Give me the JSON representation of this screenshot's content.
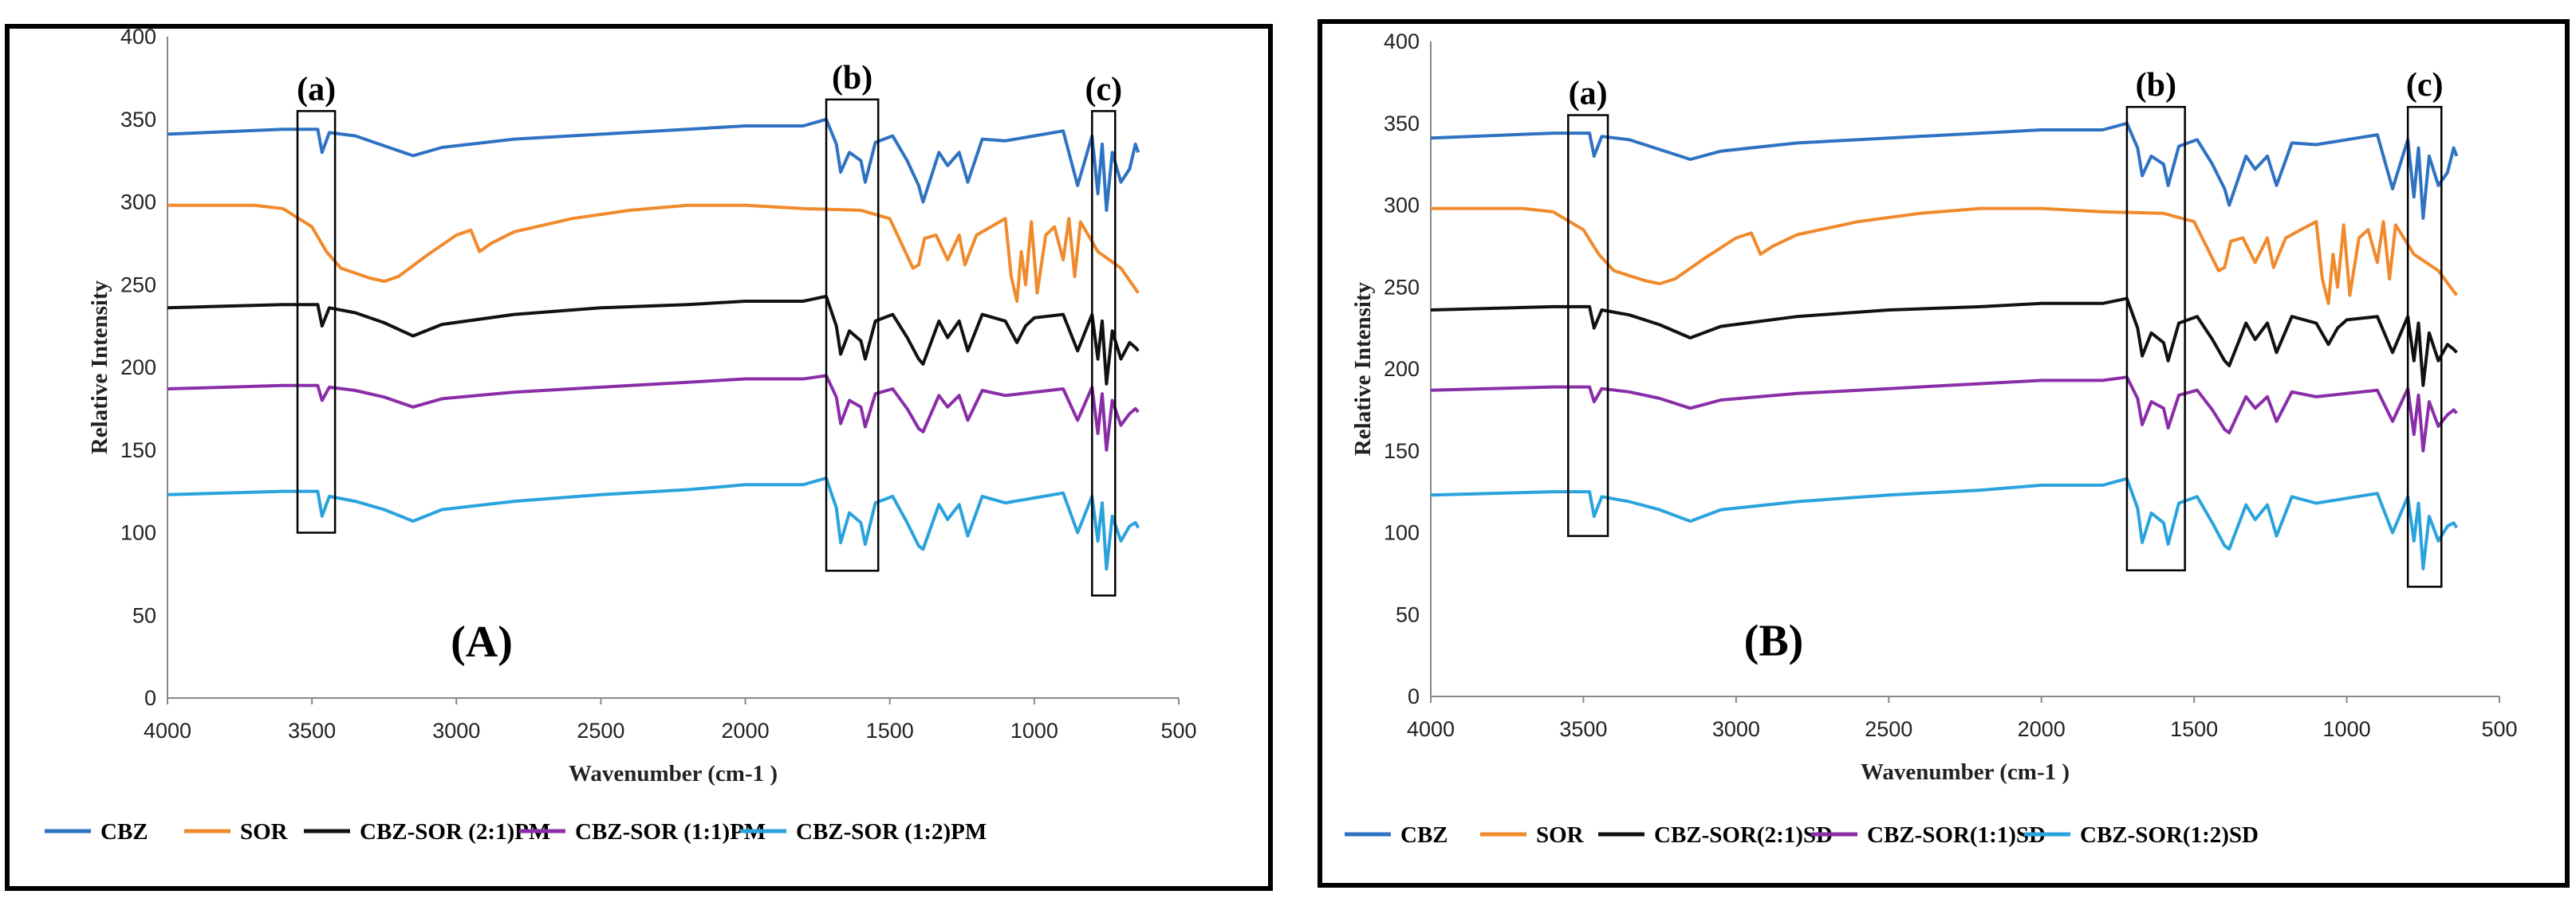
{
  "chart_data": [
    {
      "type": "line",
      "panel_label": "(A)",
      "xlabel": "Wavenumber (cm-1 )",
      "ylabel": "Relative  Intensity",
      "xlim": [
        4000,
        500
      ],
      "ylim": [
        0,
        400
      ],
      "x_ticks": [
        "4000",
        "3500",
        "3000",
        "2500",
        "2000",
        "1500",
        "1000",
        "500"
      ],
      "y_ticks": [
        "0",
        "50",
        "100",
        "150",
        "200",
        "250",
        "300",
        "350",
        "400"
      ],
      "grid": false,
      "legend_position": "bottom",
      "highlight_boxes": [
        {
          "label": "(a)",
          "x_range": [
            3550,
            3420
          ],
          "y_range": [
            100,
            355
          ]
        },
        {
          "label": "(b)",
          "x_range": [
            1720,
            1540
          ],
          "y_range": [
            77,
            362
          ]
        },
        {
          "label": "(c)",
          "x_range": [
            800,
            720
          ],
          "y_range": [
            62,
            355
          ]
        }
      ],
      "series": [
        {
          "name": "CBZ",
          "color": "#2e72c2",
          "x": [
            4000,
            3600,
            3480,
            3465,
            3440,
            3350,
            3250,
            3150,
            3050,
            2800,
            2500,
            2200,
            2000,
            1800,
            1720,
            1685,
            1670,
            1640,
            1600,
            1585,
            1550,
            1490,
            1440,
            1400,
            1385,
            1330,
            1300,
            1260,
            1230,
            1180,
            1100,
            1000,
            900,
            850,
            800,
            780,
            765,
            750,
            730,
            700,
            670,
            650,
            640
          ],
          "values": [
            341,
            344,
            344,
            330,
            342,
            340,
            334,
            328,
            333,
            338,
            341,
            344,
            346,
            346,
            350,
            335,
            318,
            330,
            325,
            312,
            336,
            340,
            325,
            310,
            300,
            330,
            322,
            330,
            312,
            338,
            337,
            340,
            343,
            310,
            340,
            305,
            335,
            295,
            330,
            312,
            320,
            335,
            330
          ]
        },
        {
          "name": "SOR",
          "color": "#f08a2c",
          "x": [
            4000,
            3700,
            3600,
            3500,
            3450,
            3400,
            3300,
            3250,
            3200,
            3100,
            3000,
            2950,
            2920,
            2880,
            2800,
            2600,
            2400,
            2200,
            2000,
            1800,
            1600,
            1500,
            1460,
            1420,
            1400,
            1380,
            1340,
            1300,
            1260,
            1240,
            1200,
            1150,
            1100,
            1080,
            1060,
            1045,
            1030,
            1010,
            990,
            960,
            930,
            900,
            880,
            860,
            840,
            820,
            780,
            700,
            660,
            640
          ],
          "values": [
            298,
            298,
            296,
            285,
            270,
            260,
            254,
            252,
            255,
            268,
            280,
            283,
            270,
            275,
            282,
            290,
            295,
            298,
            298,
            296,
            295,
            290,
            275,
            260,
            262,
            278,
            280,
            265,
            280,
            262,
            280,
            285,
            290,
            255,
            240,
            270,
            250,
            288,
            245,
            280,
            285,
            265,
            290,
            255,
            288,
            282,
            270,
            260,
            250,
            245
          ]
        },
        {
          "name": "CBZ-SOR (2:1)PM",
          "color": "#111111",
          "x": [
            4000,
            3600,
            3480,
            3465,
            3440,
            3350,
            3250,
            3150,
            3050,
            2800,
            2500,
            2200,
            2000,
            1800,
            1720,
            1685,
            1670,
            1640,
            1600,
            1585,
            1550,
            1490,
            1440,
            1400,
            1385,
            1330,
            1300,
            1260,
            1230,
            1180,
            1100,
            1060,
            1030,
            1000,
            900,
            850,
            800,
            780,
            765,
            750,
            730,
            700,
            670,
            650,
            640
          ],
          "values": [
            236,
            238,
            238,
            225,
            236,
            233,
            227,
            219,
            226,
            232,
            236,
            238,
            240,
            240,
            243,
            225,
            208,
            222,
            216,
            205,
            228,
            232,
            218,
            205,
            202,
            228,
            218,
            228,
            210,
            232,
            228,
            215,
            225,
            230,
            232,
            210,
            232,
            205,
            228,
            190,
            222,
            205,
            215,
            212,
            210
          ]
        },
        {
          "name": "CBZ-SOR (1:1)PM",
          "color": "#8a2ea8",
          "x": [
            4000,
            3600,
            3480,
            3465,
            3440,
            3350,
            3250,
            3150,
            3050,
            2800,
            2500,
            2200,
            2000,
            1800,
            1720,
            1685,
            1670,
            1640,
            1600,
            1585,
            1550,
            1490,
            1440,
            1400,
            1385,
            1330,
            1300,
            1260,
            1230,
            1180,
            1100,
            1000,
            900,
            850,
            800,
            780,
            765,
            750,
            730,
            700,
            670,
            650,
            640
          ],
          "values": [
            187,
            189,
            189,
            180,
            188,
            186,
            182,
            176,
            181,
            185,
            188,
            191,
            193,
            193,
            195,
            182,
            166,
            180,
            176,
            164,
            184,
            187,
            175,
            163,
            161,
            183,
            176,
            183,
            168,
            186,
            183,
            185,
            187,
            168,
            188,
            160,
            184,
            150,
            180,
            165,
            172,
            175,
            173
          ]
        },
        {
          "name": "CBZ-SOR (1:2)PM",
          "color": "#2aa3dd",
          "x": [
            4000,
            3600,
            3480,
            3465,
            3440,
            3350,
            3250,
            3150,
            3050,
            2800,
            2500,
            2200,
            2000,
            1800,
            1720,
            1685,
            1670,
            1640,
            1600,
            1585,
            1550,
            1490,
            1440,
            1400,
            1385,
            1330,
            1300,
            1260,
            1230,
            1180,
            1100,
            1000,
            900,
            850,
            800,
            780,
            765,
            750,
            730,
            700,
            670,
            650,
            640
          ],
          "values": [
            123,
            125,
            125,
            110,
            122,
            119,
            114,
            107,
            114,
            119,
            123,
            126,
            129,
            129,
            133,
            115,
            94,
            112,
            106,
            93,
            118,
            122,
            106,
            92,
            90,
            117,
            108,
            117,
            98,
            122,
            118,
            121,
            124,
            100,
            122,
            95,
            118,
            78,
            110,
            95,
            104,
            106,
            103
          ]
        }
      ]
    },
    {
      "type": "line",
      "panel_label": "(B)",
      "xlabel": "Wavenumber (cm-1 )",
      "ylabel": "Relative  Intensity",
      "xlim": [
        4000,
        500
      ],
      "ylim": [
        0,
        400
      ],
      "x_ticks": [
        "4000",
        "3500",
        "3000",
        "2500",
        "2000",
        "1500",
        "1000",
        "500"
      ],
      "y_ticks": [
        "0",
        "50",
        "100",
        "150",
        "200",
        "250",
        "300",
        "350",
        "400"
      ],
      "grid": false,
      "legend_position": "bottom",
      "highlight_boxes": [
        {
          "label": "(a)",
          "x_range": [
            3550,
            3420
          ],
          "y_range": [
            98,
            355
          ]
        },
        {
          "label": "(b)",
          "x_range": [
            1720,
            1530
          ],
          "y_range": [
            77,
            360
          ]
        },
        {
          "label": "(c)",
          "x_range": [
            800,
            690
          ],
          "y_range": [
            67,
            360
          ]
        }
      ],
      "series": [
        {
          "name": "CBZ",
          "color": "#2e72c2",
          "x": [
            4000,
            3600,
            3480,
            3465,
            3440,
            3350,
            3250,
            3150,
            3050,
            2800,
            2500,
            2200,
            2000,
            1800,
            1720,
            1685,
            1670,
            1640,
            1600,
            1585,
            1550,
            1490,
            1440,
            1400,
            1385,
            1330,
            1300,
            1260,
            1230,
            1180,
            1100,
            1000,
            900,
            850,
            800,
            780,
            765,
            750,
            730,
            700,
            670,
            650,
            640
          ],
          "values": [
            341,
            344,
            344,
            330,
            342,
            340,
            334,
            328,
            333,
            338,
            341,
            344,
            346,
            346,
            350,
            335,
            318,
            330,
            325,
            312,
            336,
            340,
            325,
            310,
            300,
            330,
            322,
            330,
            312,
            338,
            337,
            340,
            343,
            310,
            340,
            305,
            335,
            292,
            330,
            312,
            320,
            335,
            330
          ]
        },
        {
          "name": "SOR",
          "color": "#f08a2c",
          "x": [
            4000,
            3700,
            3600,
            3500,
            3450,
            3400,
            3300,
            3250,
            3200,
            3100,
            3000,
            2950,
            2920,
            2880,
            2800,
            2600,
            2400,
            2200,
            2000,
            1800,
            1600,
            1500,
            1460,
            1420,
            1400,
            1380,
            1340,
            1300,
            1260,
            1240,
            1200,
            1150,
            1100,
            1080,
            1060,
            1045,
            1030,
            1010,
            990,
            960,
            930,
            900,
            880,
            860,
            840,
            820,
            780,
            700,
            660,
            640
          ],
          "values": [
            298,
            298,
            296,
            285,
            270,
            260,
            254,
            252,
            255,
            268,
            280,
            283,
            270,
            275,
            282,
            290,
            295,
            298,
            298,
            296,
            295,
            290,
            275,
            260,
            262,
            278,
            280,
            265,
            280,
            262,
            280,
            285,
            290,
            255,
            240,
            270,
            250,
            288,
            245,
            280,
            285,
            265,
            290,
            255,
            288,
            282,
            270,
            260,
            250,
            245
          ]
        },
        {
          "name": "CBZ-SOR(2:1)SD",
          "color": "#111111",
          "x": [
            4000,
            3600,
            3480,
            3465,
            3440,
            3350,
            3250,
            3150,
            3050,
            2800,
            2500,
            2200,
            2000,
            1800,
            1720,
            1685,
            1670,
            1640,
            1600,
            1585,
            1550,
            1490,
            1440,
            1400,
            1385,
            1330,
            1300,
            1260,
            1230,
            1180,
            1100,
            1060,
            1030,
            1000,
            900,
            850,
            800,
            780,
            765,
            750,
            730,
            700,
            670,
            650,
            640
          ],
          "values": [
            236,
            238,
            238,
            225,
            236,
            233,
            227,
            219,
            226,
            232,
            236,
            238,
            240,
            240,
            243,
            225,
            208,
            222,
            216,
            205,
            228,
            232,
            218,
            205,
            202,
            228,
            218,
            228,
            210,
            232,
            228,
            215,
            225,
            230,
            232,
            210,
            232,
            205,
            228,
            190,
            222,
            205,
            215,
            212,
            210
          ]
        },
        {
          "name": "CBZ-SOR(1:1)SD",
          "color": "#8a2ea8",
          "x": [
            4000,
            3600,
            3480,
            3465,
            3440,
            3350,
            3250,
            3150,
            3050,
            2800,
            2500,
            2200,
            2000,
            1800,
            1720,
            1685,
            1670,
            1640,
            1600,
            1585,
            1550,
            1490,
            1440,
            1400,
            1385,
            1330,
            1300,
            1260,
            1230,
            1180,
            1100,
            1000,
            900,
            850,
            800,
            780,
            765,
            750,
            730,
            700,
            670,
            650,
            640
          ],
          "values": [
            187,
            189,
            189,
            180,
            188,
            186,
            182,
            176,
            181,
            185,
            188,
            191,
            193,
            193,
            195,
            182,
            166,
            180,
            176,
            164,
            184,
            187,
            175,
            163,
            161,
            183,
            176,
            183,
            168,
            186,
            183,
            185,
            187,
            168,
            188,
            160,
            184,
            150,
            180,
            165,
            172,
            175,
            173
          ]
        },
        {
          "name": "CBZ-SOR(1:2)SD",
          "color": "#2aa3dd",
          "x": [
            4000,
            3600,
            3480,
            3465,
            3440,
            3350,
            3250,
            3150,
            3050,
            2800,
            2500,
            2200,
            2000,
            1800,
            1720,
            1685,
            1670,
            1640,
            1600,
            1585,
            1550,
            1490,
            1440,
            1400,
            1385,
            1330,
            1300,
            1260,
            1230,
            1180,
            1100,
            1000,
            900,
            850,
            800,
            780,
            765,
            750,
            730,
            700,
            670,
            650,
            640
          ],
          "values": [
            123,
            125,
            125,
            110,
            122,
            119,
            114,
            107,
            114,
            119,
            123,
            126,
            129,
            129,
            133,
            115,
            94,
            112,
            106,
            93,
            118,
            122,
            106,
            92,
            90,
            117,
            108,
            117,
            98,
            122,
            118,
            121,
            124,
            100,
            122,
            95,
            118,
            78,
            110,
            95,
            104,
            106,
            103
          ]
        }
      ]
    }
  ]
}
